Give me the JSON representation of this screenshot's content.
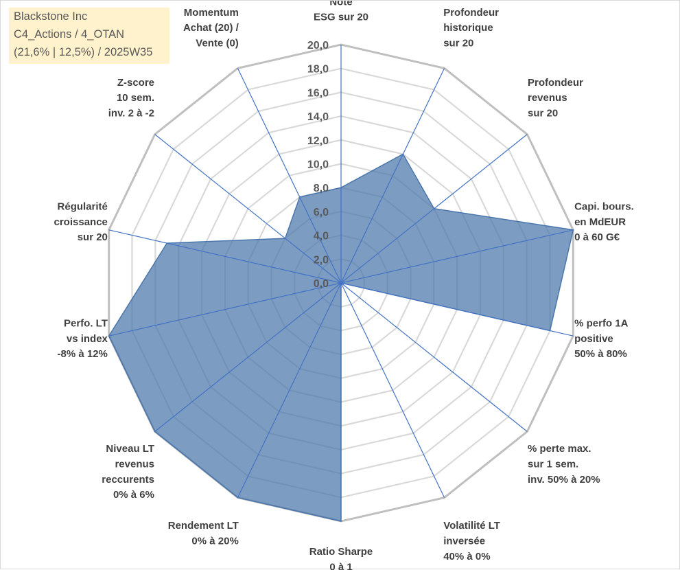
{
  "title_box": {
    "line1": "Blackstone Inc",
    "line2": "C4_Actions / 4_OTAN",
    "line3": "(21,6% | 12,5%) / 2025W35"
  },
  "colors": {
    "grid": "#bfbfbf",
    "spoke": "#4472c4",
    "fill": "#4a76ab",
    "title_bg": "#fff2cc"
  },
  "chart_data": {
    "type": "radar",
    "rlim": [
      0,
      20
    ],
    "ticks": [
      "0,0",
      "2,0",
      "4,0",
      "6,0",
      "8,0",
      "10,0",
      "12,0",
      "14,0",
      "16,0",
      "18,0",
      "20,0"
    ],
    "grid": true,
    "categories": [
      [
        "Note",
        "ESG sur 20"
      ],
      [
        "Profondeur",
        "historique",
        "sur 20"
      ],
      [
        "Profondeur",
        "revenus",
        "sur 20"
      ],
      [
        "Capi. bours.",
        "en MdEUR",
        "0 à 60 G€"
      ],
      [
        "% perfo 1A",
        "positive",
        "50% à 80%"
      ],
      [
        "% perte max.",
        "sur 1 sem.",
        "inv. 50% à 20%"
      ],
      [
        "Volatilité LT",
        "inversée",
        "40% à 0%"
      ],
      [
        "Ratio Sharpe",
        "0 à 1"
      ],
      [
        "Rendement LT",
        "0% à 20%"
      ],
      [
        "Niveau LT",
        "revenus",
        "reccurents",
        "0% à 6%"
      ],
      [
        "Perfo. LT",
        "vs index",
        "-8% à 12%"
      ],
      [
        "Régularité",
        "croissance",
        "sur 20"
      ],
      [
        "Z-score",
        "10 sem.",
        "inv. 2 à -2"
      ],
      [
        "Momentum",
        "Achat (20) /",
        "Vente (0)"
      ]
    ],
    "series": [
      {
        "values": [
          8.0,
          12.0,
          10.0,
          20.0,
          18.0,
          0.0,
          0.0,
          20.0,
          20.0,
          20.0,
          20.0,
          15.0,
          6.0,
          8.0
        ]
      }
    ]
  }
}
